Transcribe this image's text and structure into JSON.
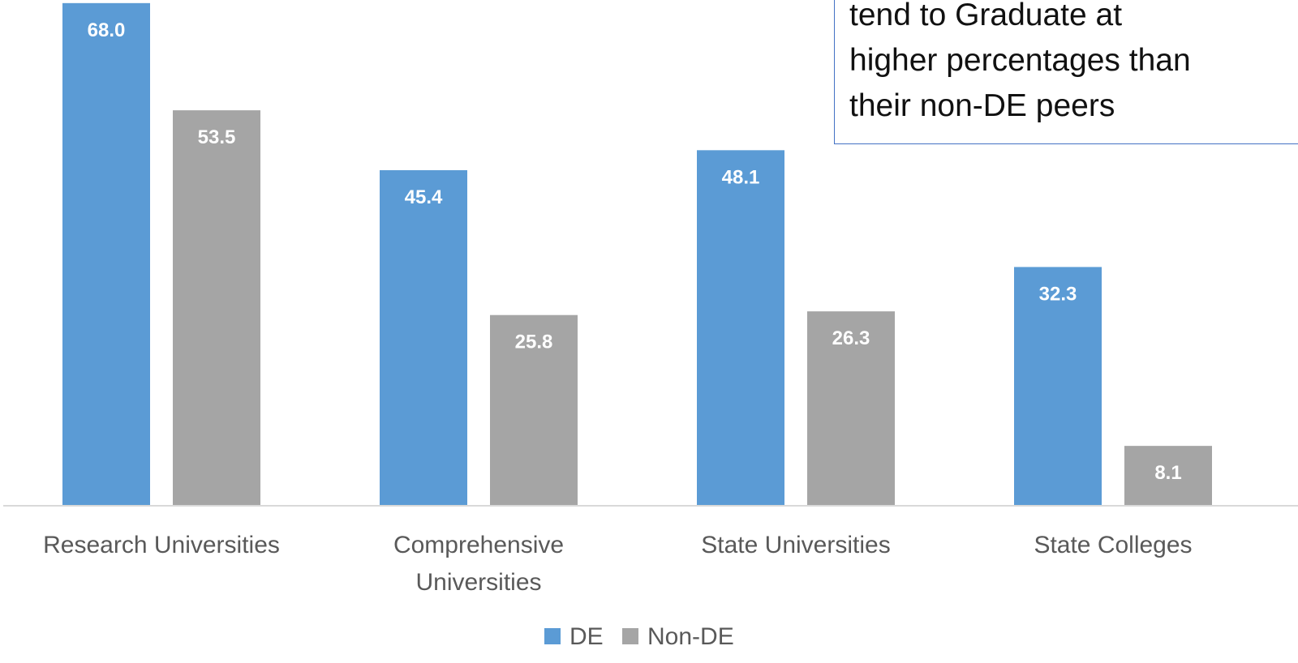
{
  "chart_data": {
    "type": "bar",
    "categories": [
      [
        "Research Universities"
      ],
      [
        "Comprehensive",
        "Universities"
      ],
      [
        "State Universities"
      ],
      [
        "State Colleges"
      ]
    ],
    "series": [
      {
        "name": "DE",
        "color": "#5b9bd5",
        "values": [
          68.0,
          45.4,
          48.1,
          32.3
        ],
        "value_labels": [
          "68.0",
          "45.4",
          "48.1",
          "32.3"
        ]
      },
      {
        "name": "Non-DE",
        "color": "#a5a5a5",
        "values": [
          53.5,
          25.8,
          26.3,
          8.1
        ],
        "value_labels": [
          "53.5",
          "25.8",
          "26.3",
          "8.1"
        ]
      }
    ],
    "legend_position": "bottom",
    "grid": false,
    "annotation": [
      "tend to Graduate at",
      "higher percentages than",
      "their non-DE peers"
    ]
  }
}
